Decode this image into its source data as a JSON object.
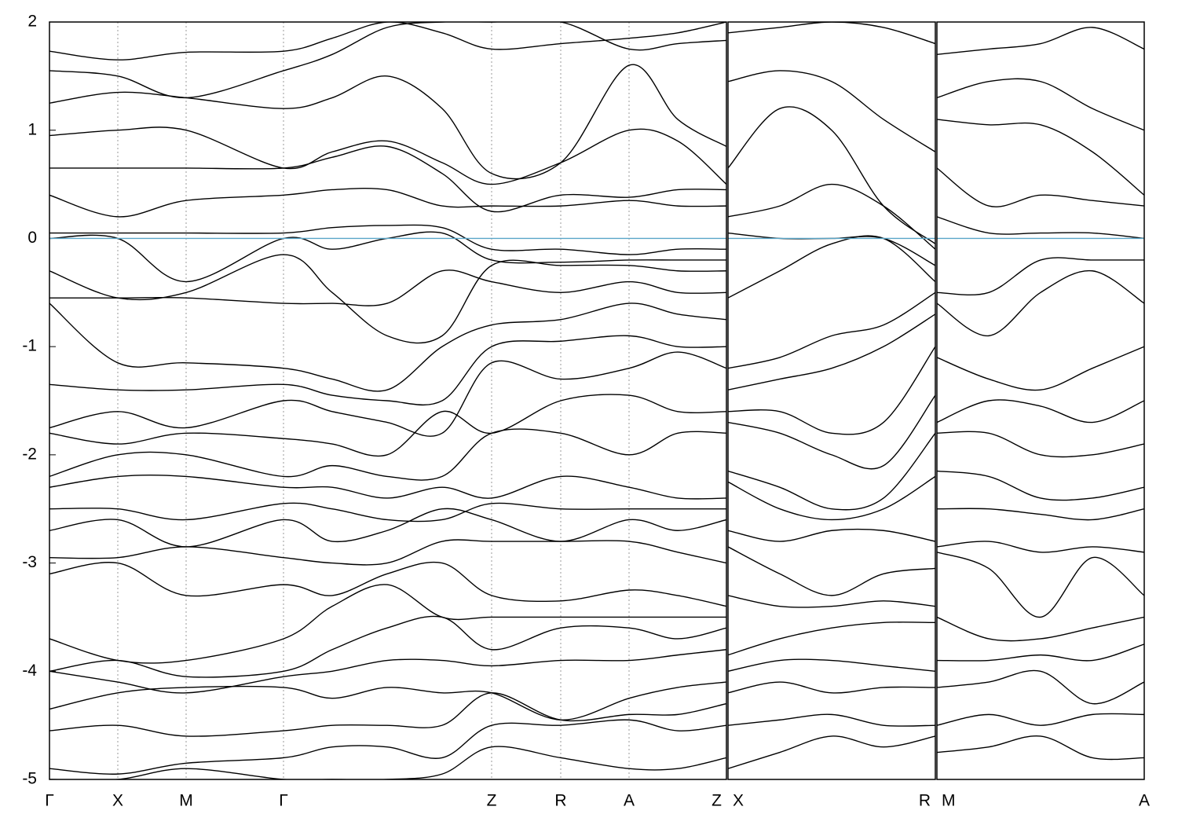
{
  "chart_data": [
    {
      "type": "line",
      "xlim": [
        0,
        8.62
      ],
      "ylim": [
        -5,
        2
      ],
      "yticks": [
        -5,
        -4,
        -3,
        -2,
        -1,
        0,
        1,
        2
      ],
      "xticks": [
        {
          "value": 0,
          "label": "Γ"
        },
        {
          "value": 0.87,
          "label": "X"
        },
        {
          "value": 1.74,
          "label": "M"
        },
        {
          "value": 2.98,
          "label": "Γ"
        },
        {
          "value": 5.63,
          "label": "Z"
        },
        {
          "value": 6.51,
          "label": "R"
        },
        {
          "value": 7.38,
          "label": "A"
        },
        {
          "value": 8.62,
          "label": "Z"
        }
      ],
      "grid": true,
      "hline": 0,
      "hline_color": "#5aa6c8",
      "x": [
        0,
        0.87,
        1.74,
        2.98,
        3.6,
        4.3,
        5.0,
        5.63,
        6.51,
        7.38,
        8.0,
        8.62
      ],
      "series": [
        {
          "color": "#000000",
          "values": [
            1.73,
            1.65,
            1.72,
            1.73,
            1.85,
            2.0,
            1.9,
            1.75,
            1.8,
            1.85,
            1.9,
            2.0
          ]
        },
        {
          "color": "#000000",
          "values": [
            1.55,
            1.5,
            1.3,
            1.55,
            1.7,
            1.95,
            2.0,
            2.0,
            2.0,
            1.75,
            1.8,
            1.83
          ]
        },
        {
          "color": "#000000",
          "values": [
            1.25,
            1.35,
            1.3,
            1.2,
            1.3,
            1.5,
            1.2,
            0.6,
            0.7,
            1.6,
            1.1,
            0.85
          ]
        },
        {
          "color": "#000000",
          "values": [
            0.95,
            1.0,
            1.0,
            0.65,
            0.8,
            0.9,
            0.7,
            0.5,
            0.7,
            1.0,
            0.9,
            0.5
          ]
        },
        {
          "color": "#000000",
          "values": [
            0.65,
            0.65,
            0.65,
            0.65,
            0.75,
            0.85,
            0.6,
            0.25,
            0.4,
            0.38,
            0.45,
            0.45
          ]
        },
        {
          "color": "#000000",
          "values": [
            0.4,
            0.2,
            0.35,
            0.4,
            0.45,
            0.45,
            0.3,
            0.3,
            0.3,
            0.35,
            0.3,
            0.3
          ]
        },
        {
          "color": "#000000",
          "values": [
            0.05,
            0.05,
            0.05,
            0.05,
            0.1,
            0.12,
            0.1,
            -0.1,
            -0.1,
            -0.15,
            -0.1,
            -0.1
          ]
        },
        {
          "color": "#000000",
          "values": [
            0.0,
            0.0,
            -0.4,
            0.0,
            -0.1,
            0.0,
            0.05,
            -0.2,
            -0.22,
            -0.2,
            -0.2,
            -0.2
          ]
        },
        {
          "color": "#000000",
          "values": [
            -0.3,
            -0.55,
            -0.5,
            -0.15,
            -0.5,
            -0.9,
            -0.9,
            -0.25,
            -0.25,
            -0.25,
            -0.3,
            -0.3
          ]
        },
        {
          "color": "#000000",
          "values": [
            -0.55,
            -0.55,
            -0.55,
            -0.6,
            -0.6,
            -0.6,
            -0.3,
            -0.4,
            -0.5,
            -0.4,
            -0.5,
            -0.5
          ]
        },
        {
          "color": "#000000",
          "values": [
            -0.6,
            -1.15,
            -1.15,
            -1.2,
            -1.3,
            -1.4,
            -1.0,
            -0.8,
            -0.75,
            -0.6,
            -0.7,
            -0.75
          ]
        },
        {
          "color": "#000000",
          "values": [
            -1.35,
            -1.4,
            -1.4,
            -1.35,
            -1.45,
            -1.5,
            -1.5,
            -1.0,
            -0.95,
            -0.9,
            -1.0,
            -1.0
          ]
        },
        {
          "color": "#000000",
          "values": [
            -1.75,
            -1.6,
            -1.75,
            -1.5,
            -1.6,
            -1.7,
            -1.8,
            -1.15,
            -1.3,
            -1.2,
            -1.05,
            -1.2
          ]
        },
        {
          "color": "#000000",
          "values": [
            -1.8,
            -1.9,
            -1.8,
            -1.85,
            -1.9,
            -2.0,
            -1.6,
            -1.8,
            -1.5,
            -1.45,
            -1.6,
            -1.6
          ]
        },
        {
          "color": "#000000",
          "values": [
            -2.2,
            -2.0,
            -2.0,
            -2.2,
            -2.1,
            -2.2,
            -2.2,
            -1.8,
            -1.8,
            -2.0,
            -1.8,
            -1.8
          ]
        },
        {
          "color": "#000000",
          "values": [
            -2.3,
            -2.2,
            -2.2,
            -2.3,
            -2.3,
            -2.4,
            -2.3,
            -2.4,
            -2.2,
            -2.3,
            -2.4,
            -2.4
          ]
        },
        {
          "color": "#000000",
          "values": [
            -2.5,
            -2.5,
            -2.6,
            -2.45,
            -2.5,
            -2.6,
            -2.6,
            -2.45,
            -2.5,
            -2.5,
            -2.5,
            -2.5
          ]
        },
        {
          "color": "#000000",
          "values": [
            -2.7,
            -2.6,
            -2.85,
            -2.6,
            -2.8,
            -2.7,
            -2.5,
            -2.6,
            -2.8,
            -2.6,
            -2.7,
            -2.6
          ]
        },
        {
          "color": "#000000",
          "values": [
            -2.95,
            -2.95,
            -2.85,
            -2.95,
            -3.0,
            -3.0,
            -2.8,
            -2.8,
            -2.8,
            -2.8,
            -2.9,
            -3.0
          ]
        },
        {
          "color": "#000000",
          "values": [
            -3.1,
            -3.0,
            -3.3,
            -3.2,
            -3.3,
            -3.1,
            -3.0,
            -3.3,
            -3.35,
            -3.25,
            -3.3,
            -3.4
          ]
        },
        {
          "color": "#000000",
          "values": [
            -3.7,
            -3.9,
            -3.9,
            -3.7,
            -3.4,
            -3.2,
            -3.5,
            -3.5,
            -3.5,
            -3.5,
            -3.5,
            -3.5
          ]
        },
        {
          "color": "#000000",
          "values": [
            -4.0,
            -3.9,
            -4.05,
            -4.0,
            -3.8,
            -3.6,
            -3.5,
            -3.8,
            -3.6,
            -3.6,
            -3.7,
            -3.6
          ]
        },
        {
          "color": "#000000",
          "values": [
            -4.0,
            -4.1,
            -4.2,
            -4.05,
            -4.0,
            -3.9,
            -3.9,
            -3.95,
            -3.9,
            -3.9,
            -3.85,
            -3.8
          ]
        },
        {
          "color": "#000000",
          "values": [
            -4.35,
            -4.2,
            -4.15,
            -4.15,
            -4.25,
            -4.15,
            -4.2,
            -4.2,
            -4.45,
            -4.25,
            -4.15,
            -4.1
          ]
        },
        {
          "color": "#000000",
          "values": [
            -4.55,
            -4.5,
            -4.6,
            -4.55,
            -4.5,
            -4.5,
            -4.5,
            -4.2,
            -4.45,
            -4.4,
            -4.4,
            -4.3
          ]
        },
        {
          "color": "#000000",
          "values": [
            -4.9,
            -4.95,
            -4.85,
            -4.8,
            -4.7,
            -4.7,
            -4.8,
            -4.5,
            -4.5,
            -4.45,
            -4.55,
            -4.5
          ]
        },
        {
          "color": "#000000",
          "values": [
            -5.0,
            -5.0,
            -4.9,
            -5.0,
            -5.0,
            -5.0,
            -4.95,
            -4.7,
            -4.8,
            -4.9,
            -4.9,
            -4.8
          ]
        }
      ]
    },
    {
      "type": "line",
      "xlim": [
        0,
        2.64
      ],
      "ylim": [
        -5,
        2
      ],
      "xticks": [
        {
          "value": 0,
          "label": "X"
        },
        {
          "value": 2.64,
          "label": "R"
        }
      ],
      "grid": true,
      "hline": 0,
      "hline_color": "#5aa6c8",
      "x": [
        0,
        0.66,
        1.32,
        1.98,
        2.64
      ],
      "series": [
        {
          "color": "#000000",
          "values": [
            1.45,
            1.55,
            1.45,
            1.1,
            0.8
          ]
        },
        {
          "color": "#000000",
          "values": [
            1.9,
            1.95,
            2.0,
            1.95,
            1.8
          ]
        },
        {
          "color": "#000000",
          "values": [
            0.65,
            1.2,
            1.0,
            0.3,
            -0.05
          ]
        },
        {
          "color": "#000000",
          "values": [
            0.2,
            0.3,
            0.5,
            0.3,
            -0.1
          ]
        },
        {
          "color": "#000000",
          "values": [
            0.05,
            0.0,
            0.0,
            0.0,
            -0.25
          ]
        },
        {
          "color": "#000000",
          "values": [
            -0.55,
            -0.3,
            -0.05,
            0.0,
            -0.4
          ]
        },
        {
          "color": "#000000",
          "values": [
            -1.2,
            -1.1,
            -0.9,
            -0.8,
            -0.5
          ]
        },
        {
          "color": "#000000",
          "values": [
            -1.4,
            -1.3,
            -1.2,
            -1.0,
            -0.7
          ]
        },
        {
          "color": "#000000",
          "values": [
            -1.6,
            -1.6,
            -1.8,
            -1.7,
            -1.0
          ]
        },
        {
          "color": "#000000",
          "values": [
            -1.7,
            -1.8,
            -2.0,
            -2.1,
            -1.45
          ]
        },
        {
          "color": "#000000",
          "values": [
            -2.15,
            -2.3,
            -2.5,
            -2.4,
            -1.8
          ]
        },
        {
          "color": "#000000",
          "values": [
            -2.25,
            -2.5,
            -2.6,
            -2.5,
            -2.2
          ]
        },
        {
          "color": "#000000",
          "values": [
            -2.7,
            -2.8,
            -2.7,
            -2.7,
            -2.8
          ]
        },
        {
          "color": "#000000",
          "values": [
            -2.85,
            -3.1,
            -3.3,
            -3.1,
            -3.05
          ]
        },
        {
          "color": "#000000",
          "values": [
            -3.3,
            -3.4,
            -3.4,
            -3.35,
            -3.4
          ]
        },
        {
          "color": "#000000",
          "values": [
            -3.85,
            -3.7,
            -3.6,
            -3.55,
            -3.55
          ]
        },
        {
          "color": "#000000",
          "values": [
            -4.0,
            -3.9,
            -3.9,
            -3.95,
            -4.0
          ]
        },
        {
          "color": "#000000",
          "values": [
            -4.2,
            -4.1,
            -4.2,
            -4.15,
            -4.15
          ]
        },
        {
          "color": "#000000",
          "values": [
            -4.5,
            -4.45,
            -4.4,
            -4.5,
            -4.5
          ]
        },
        {
          "color": "#000000",
          "values": [
            -4.9,
            -4.75,
            -4.6,
            -4.7,
            -4.6
          ]
        }
      ]
    },
    {
      "type": "line",
      "xlim": [
        0,
        2.64
      ],
      "ylim": [
        -5,
        2
      ],
      "xticks": [
        {
          "value": 0,
          "label": "M"
        },
        {
          "value": 2.64,
          "label": "A"
        }
      ],
      "grid": true,
      "hline": 0,
      "hline_color": "#5aa6c8",
      "x": [
        0,
        0.66,
        1.32,
        1.98,
        2.64
      ],
      "series": [
        {
          "color": "#000000",
          "values": [
            1.7,
            1.75,
            1.8,
            1.95,
            1.75
          ]
        },
        {
          "color": "#000000",
          "values": [
            1.3,
            1.45,
            1.45,
            1.2,
            1.0
          ]
        },
        {
          "color": "#000000",
          "values": [
            1.1,
            1.05,
            1.05,
            0.8,
            0.4
          ]
        },
        {
          "color": "#000000",
          "values": [
            0.65,
            0.3,
            0.4,
            0.35,
            0.3
          ]
        },
        {
          "color": "#000000",
          "values": [
            0.2,
            0.05,
            0.05,
            0.05,
            0.0
          ]
        },
        {
          "color": "#000000",
          "values": [
            -0.5,
            -0.5,
            -0.2,
            -0.2,
            -0.2
          ]
        },
        {
          "color": "#000000",
          "values": [
            -0.6,
            -0.9,
            -0.5,
            -0.3,
            -0.6
          ]
        },
        {
          "color": "#000000",
          "values": [
            -1.1,
            -1.3,
            -1.4,
            -1.2,
            -1.0
          ]
        },
        {
          "color": "#000000",
          "values": [
            -1.7,
            -1.5,
            -1.55,
            -1.7,
            -1.5
          ]
        },
        {
          "color": "#000000",
          "values": [
            -1.8,
            -1.8,
            -2.0,
            -2.0,
            -1.9
          ]
        },
        {
          "color": "#000000",
          "values": [
            -2.15,
            -2.2,
            -2.4,
            -2.4,
            -2.3
          ]
        },
        {
          "color": "#000000",
          "values": [
            -2.5,
            -2.5,
            -2.55,
            -2.6,
            -2.5
          ]
        },
        {
          "color": "#000000",
          "values": [
            -2.85,
            -2.8,
            -2.9,
            -2.85,
            -2.9
          ]
        },
        {
          "color": "#000000",
          "values": [
            -2.9,
            -3.05,
            -3.5,
            -2.95,
            -3.3
          ]
        },
        {
          "color": "#000000",
          "values": [
            -3.5,
            -3.7,
            -3.7,
            -3.6,
            -3.5
          ]
        },
        {
          "color": "#000000",
          "values": [
            -3.9,
            -3.9,
            -3.85,
            -3.9,
            -3.75
          ]
        },
        {
          "color": "#000000",
          "values": [
            -4.15,
            -4.1,
            -4.0,
            -4.3,
            -4.1
          ]
        },
        {
          "color": "#000000",
          "values": [
            -4.5,
            -4.4,
            -4.5,
            -4.4,
            -4.4
          ]
        },
        {
          "color": "#000000",
          "values": [
            -4.75,
            -4.7,
            -4.6,
            -4.8,
            -4.8
          ]
        }
      ]
    }
  ]
}
